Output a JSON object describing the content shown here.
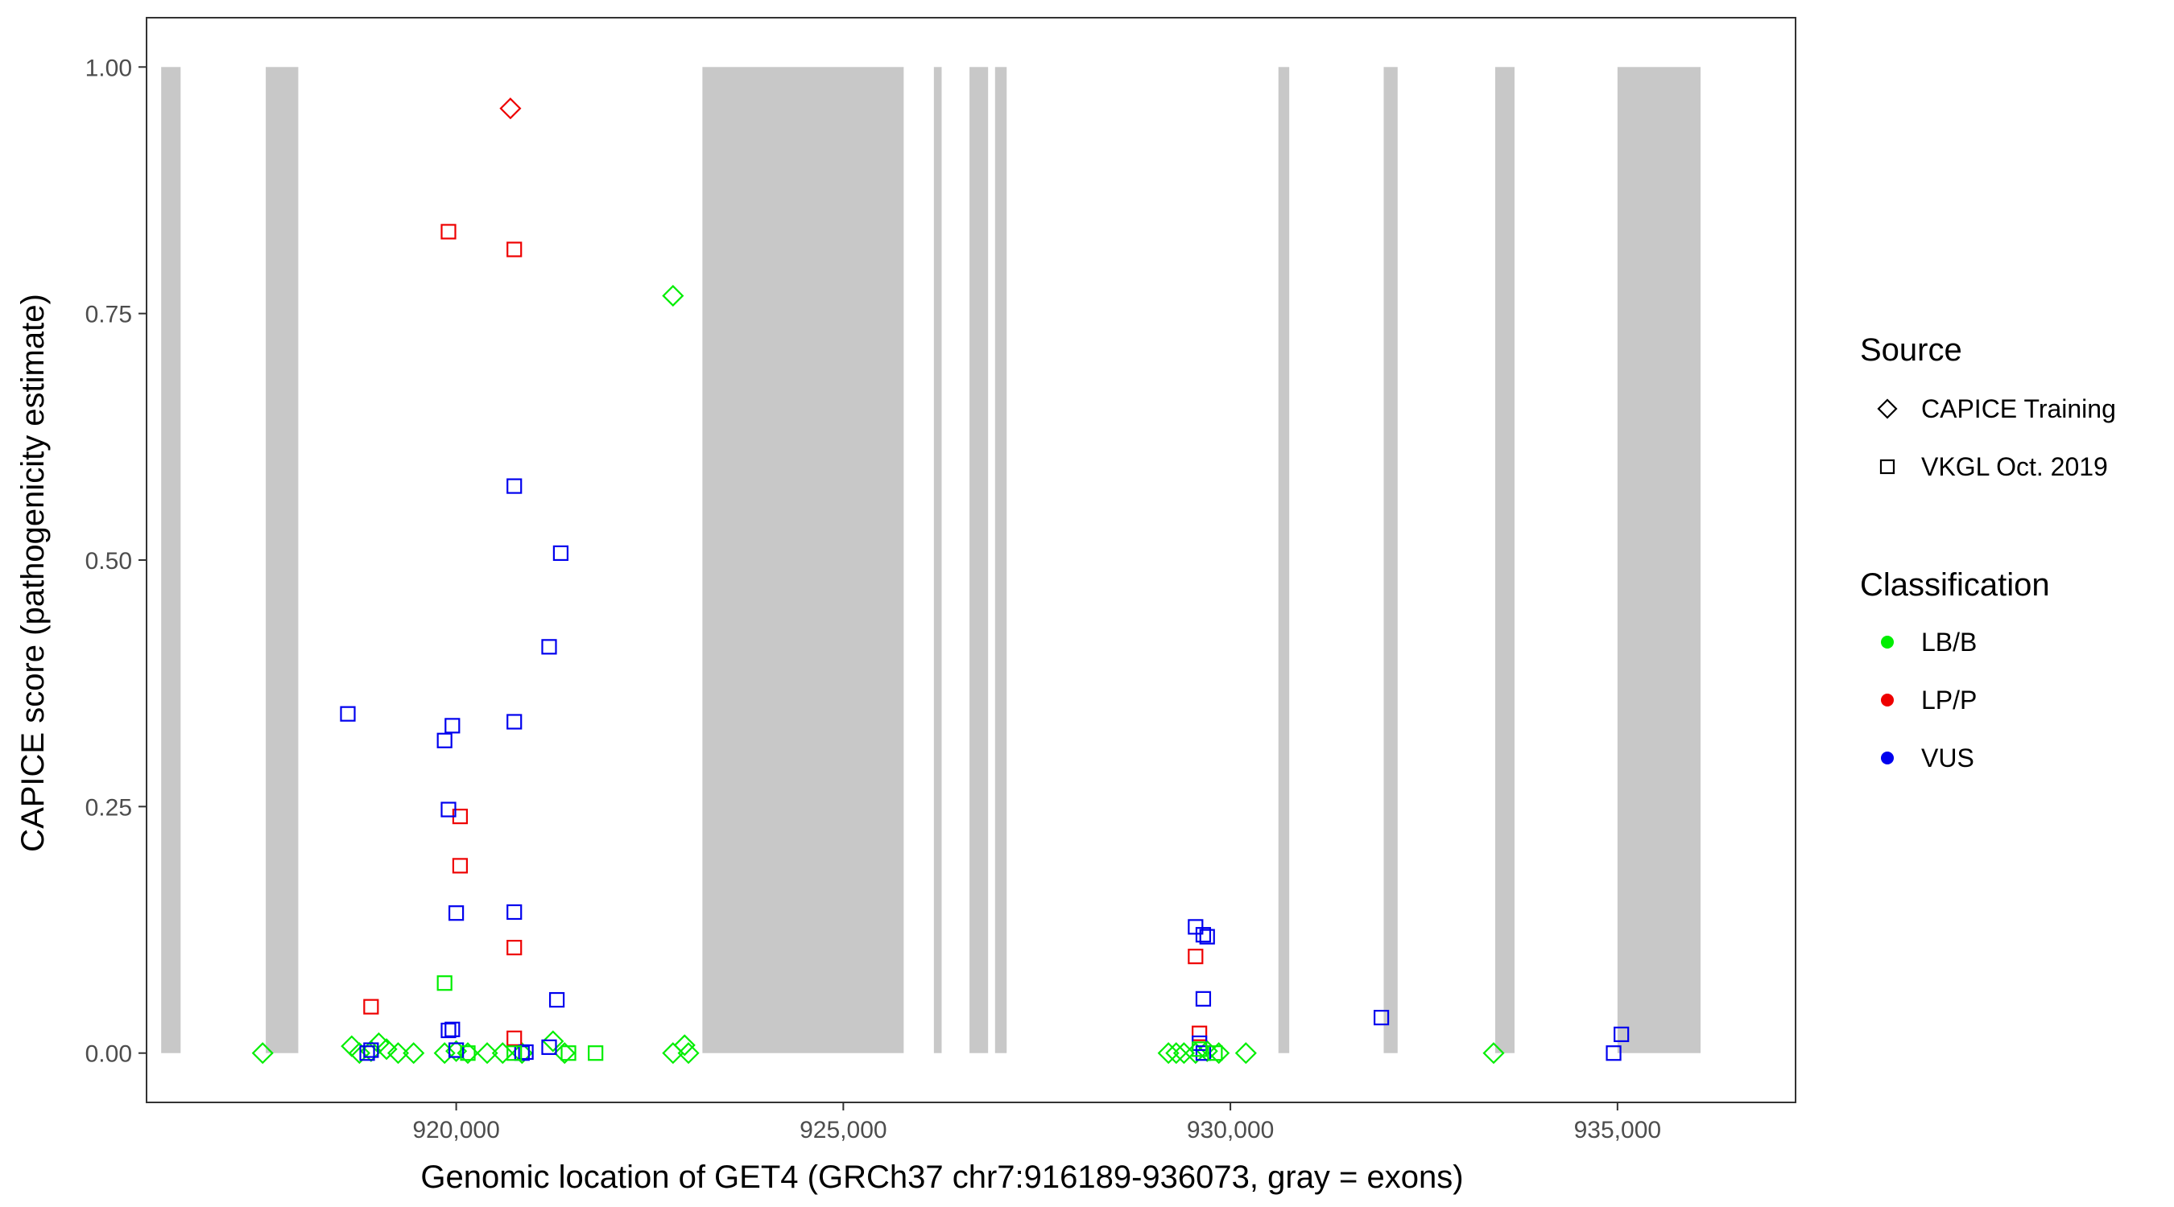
{
  "chart_data": {
    "type": "scatter",
    "xlabel": "Genomic location of GET4 (GRCh37 chr7:916189-936073, gray = exons)",
    "ylabel": "CAPICE score (pathogenicity estimate)",
    "xlim": [
      916000,
      937300
    ],
    "ylim": [
      -0.05,
      1.05
    ],
    "x_ticks": [
      {
        "value": 920000,
        "label": "920,000"
      },
      {
        "value": 925000,
        "label": "925,000"
      },
      {
        "value": 930000,
        "label": "930,000"
      },
      {
        "value": 935000,
        "label": "935,000"
      }
    ],
    "y_ticks": [
      {
        "value": 0.0,
        "label": "0.00"
      },
      {
        "value": 0.25,
        "label": "0.25"
      },
      {
        "value": 0.5,
        "label": "0.50"
      },
      {
        "value": 0.75,
        "label": "0.75"
      },
      {
        "value": 1.0,
        "label": "1.00"
      }
    ],
    "grid": false,
    "exon_color": "#c8c8c8",
    "exons": [
      [
        916189,
        916440
      ],
      [
        917540,
        917960
      ],
      [
        923180,
        925780
      ],
      [
        926170,
        926270
      ],
      [
        926630,
        926870
      ],
      [
        926960,
        927110
      ],
      [
        930620,
        930760
      ],
      [
        931980,
        932160
      ],
      [
        933420,
        933670
      ],
      [
        935000,
        936073
      ]
    ],
    "legend": {
      "placement": "right",
      "source_title": "Source",
      "source_items": [
        {
          "name": "CAPICE Training",
          "shape": "diamond"
        },
        {
          "name": "VKGL Oct. 2019",
          "shape": "square"
        }
      ],
      "class_title": "Classification",
      "class_items": [
        {
          "name": "LB/B",
          "color": "#00ee00"
        },
        {
          "name": "LP/P",
          "color": "#ee0000"
        },
        {
          "name": "VUS",
          "color": "#0000ee"
        }
      ]
    },
    "points": [
      {
        "x": 920700,
        "y": 0.958,
        "source": "CAPICE Training",
        "class": "LP/P"
      },
      {
        "x": 922800,
        "y": 0.768,
        "source": "CAPICE Training",
        "class": "LB/B"
      },
      {
        "x": 917500,
        "y": 0.0,
        "source": "CAPICE Training",
        "class": "LB/B"
      },
      {
        "x": 918650,
        "y": 0.007,
        "source": "CAPICE Training",
        "class": "LB/B"
      },
      {
        "x": 918750,
        "y": 0.0,
        "source": "CAPICE Training",
        "class": "LB/B"
      },
      {
        "x": 918900,
        "y": 0.002,
        "source": "CAPICE Training",
        "class": "LB/B"
      },
      {
        "x": 919000,
        "y": 0.01,
        "source": "CAPICE Training",
        "class": "LB/B"
      },
      {
        "x": 919100,
        "y": 0.004,
        "source": "CAPICE Training",
        "class": "LB/B"
      },
      {
        "x": 919250,
        "y": 0.0,
        "source": "CAPICE Training",
        "class": "LB/B"
      },
      {
        "x": 919450,
        "y": 0.0,
        "source": "CAPICE Training",
        "class": "LB/B"
      },
      {
        "x": 919850,
        "y": 0.0,
        "source": "CAPICE Training",
        "class": "LB/B"
      },
      {
        "x": 920000,
        "y": 0.002,
        "source": "CAPICE Training",
        "class": "LB/B"
      },
      {
        "x": 920150,
        "y": 0.0,
        "source": "CAPICE Training",
        "class": "LB/B"
      },
      {
        "x": 920400,
        "y": 0.0,
        "source": "CAPICE Training",
        "class": "LB/B"
      },
      {
        "x": 920600,
        "y": 0.0,
        "source": "CAPICE Training",
        "class": "LB/B"
      },
      {
        "x": 920850,
        "y": 0.0,
        "source": "CAPICE Training",
        "class": "LB/B"
      },
      {
        "x": 921250,
        "y": 0.012,
        "source": "CAPICE Training",
        "class": "LB/B"
      },
      {
        "x": 921400,
        "y": 0.0,
        "source": "CAPICE Training",
        "class": "LB/B"
      },
      {
        "x": 922800,
        "y": 0.0,
        "source": "CAPICE Training",
        "class": "LB/B"
      },
      {
        "x": 922950,
        "y": 0.008,
        "source": "CAPICE Training",
        "class": "LB/B"
      },
      {
        "x": 923000,
        "y": 0.0,
        "source": "CAPICE Training",
        "class": "LB/B"
      },
      {
        "x": 929200,
        "y": 0.0,
        "source": "CAPICE Training",
        "class": "LB/B"
      },
      {
        "x": 929300,
        "y": 0.0,
        "source": "CAPICE Training",
        "class": "LB/B"
      },
      {
        "x": 929400,
        "y": 0.0,
        "source": "CAPICE Training",
        "class": "LB/B"
      },
      {
        "x": 929550,
        "y": 0.0,
        "source": "CAPICE Training",
        "class": "LB/B"
      },
      {
        "x": 929700,
        "y": 0.002,
        "source": "CAPICE Training",
        "class": "LB/B"
      },
      {
        "x": 929850,
        "y": 0.0,
        "source": "CAPICE Training",
        "class": "LB/B"
      },
      {
        "x": 930200,
        "y": 0.0,
        "source": "CAPICE Training",
        "class": "LB/B"
      },
      {
        "x": 933400,
        "y": 0.0,
        "source": "CAPICE Training",
        "class": "LB/B"
      },
      {
        "x": 919900,
        "y": 0.833,
        "source": "VKGL Oct. 2019",
        "class": "LP/P"
      },
      {
        "x": 920750,
        "y": 0.815,
        "source": "VKGL Oct. 2019",
        "class": "LP/P"
      },
      {
        "x": 920050,
        "y": 0.24,
        "source": "VKGL Oct. 2019",
        "class": "LP/P"
      },
      {
        "x": 920050,
        "y": 0.19,
        "source": "VKGL Oct. 2019",
        "class": "LP/P"
      },
      {
        "x": 920750,
        "y": 0.107,
        "source": "VKGL Oct. 2019",
        "class": "LP/P"
      },
      {
        "x": 918900,
        "y": 0.047,
        "source": "VKGL Oct. 2019",
        "class": "LP/P"
      },
      {
        "x": 920750,
        "y": 0.015,
        "source": "VKGL Oct. 2019",
        "class": "LP/P"
      },
      {
        "x": 929550,
        "y": 0.098,
        "source": "VKGL Oct. 2019",
        "class": "LP/P"
      },
      {
        "x": 929600,
        "y": 0.02,
        "source": "VKGL Oct. 2019",
        "class": "LP/P"
      },
      {
        "x": 920750,
        "y": 0.575,
        "source": "VKGL Oct. 2019",
        "class": "VUS"
      },
      {
        "x": 921350,
        "y": 0.507,
        "source": "VKGL Oct. 2019",
        "class": "VUS"
      },
      {
        "x": 921200,
        "y": 0.412,
        "source": "VKGL Oct. 2019",
        "class": "VUS"
      },
      {
        "x": 918600,
        "y": 0.344,
        "source": "VKGL Oct. 2019",
        "class": "VUS"
      },
      {
        "x": 920750,
        "y": 0.336,
        "source": "VKGL Oct. 2019",
        "class": "VUS"
      },
      {
        "x": 919950,
        "y": 0.332,
        "source": "VKGL Oct. 2019",
        "class": "VUS"
      },
      {
        "x": 919850,
        "y": 0.317,
        "source": "VKGL Oct. 2019",
        "class": "VUS"
      },
      {
        "x": 919900,
        "y": 0.247,
        "source": "VKGL Oct. 2019",
        "class": "VUS"
      },
      {
        "x": 920000,
        "y": 0.142,
        "source": "VKGL Oct. 2019",
        "class": "VUS"
      },
      {
        "x": 920750,
        "y": 0.143,
        "source": "VKGL Oct. 2019",
        "class": "VUS"
      },
      {
        "x": 921300,
        "y": 0.054,
        "source": "VKGL Oct. 2019",
        "class": "VUS"
      },
      {
        "x": 919900,
        "y": 0.023,
        "source": "VKGL Oct. 2019",
        "class": "VUS"
      },
      {
        "x": 919950,
        "y": 0.024,
        "source": "VKGL Oct. 2019",
        "class": "VUS"
      },
      {
        "x": 918850,
        "y": 0.0,
        "source": "VKGL Oct. 2019",
        "class": "VUS"
      },
      {
        "x": 918900,
        "y": 0.003,
        "source": "VKGL Oct. 2019",
        "class": "VUS"
      },
      {
        "x": 920000,
        "y": 0.003,
        "source": "VKGL Oct. 2019",
        "class": "VUS"
      },
      {
        "x": 920850,
        "y": 0.0,
        "source": "VKGL Oct. 2019",
        "class": "VUS"
      },
      {
        "x": 920900,
        "y": 0.001,
        "source": "VKGL Oct. 2019",
        "class": "VUS"
      },
      {
        "x": 921200,
        "y": 0.006,
        "source": "VKGL Oct. 2019",
        "class": "VUS"
      },
      {
        "x": 929550,
        "y": 0.128,
        "source": "VKGL Oct. 2019",
        "class": "VUS"
      },
      {
        "x": 929650,
        "y": 0.12,
        "source": "VKGL Oct. 2019",
        "class": "VUS"
      },
      {
        "x": 929700,
        "y": 0.118,
        "source": "VKGL Oct. 2019",
        "class": "VUS"
      },
      {
        "x": 929650,
        "y": 0.055,
        "source": "VKGL Oct. 2019",
        "class": "VUS"
      },
      {
        "x": 929600,
        "y": 0.01,
        "source": "VKGL Oct. 2019",
        "class": "VUS"
      },
      {
        "x": 929650,
        "y": 0.0,
        "source": "VKGL Oct. 2019",
        "class": "VUS"
      },
      {
        "x": 931950,
        "y": 0.036,
        "source": "VKGL Oct. 2019",
        "class": "VUS"
      },
      {
        "x": 934950,
        "y": 0.0,
        "source": "VKGL Oct. 2019",
        "class": "VUS"
      },
      {
        "x": 935050,
        "y": 0.019,
        "source": "VKGL Oct. 2019",
        "class": "VUS"
      },
      {
        "x": 919850,
        "y": 0.071,
        "source": "VKGL Oct. 2019",
        "class": "LB/B"
      },
      {
        "x": 920150,
        "y": 0.0,
        "source": "VKGL Oct. 2019",
        "class": "LB/B"
      },
      {
        "x": 920750,
        "y": 0.0,
        "source": "VKGL Oct. 2019",
        "class": "LB/B"
      },
      {
        "x": 921450,
        "y": 0.0,
        "source": "VKGL Oct. 2019",
        "class": "LB/B"
      },
      {
        "x": 921800,
        "y": 0.0,
        "source": "VKGL Oct. 2019",
        "class": "LB/B"
      },
      {
        "x": 929600,
        "y": 0.004,
        "source": "VKGL Oct. 2019",
        "class": "LB/B"
      },
      {
        "x": 929800,
        "y": 0.0,
        "source": "VKGL Oct. 2019",
        "class": "LB/B"
      }
    ]
  }
}
